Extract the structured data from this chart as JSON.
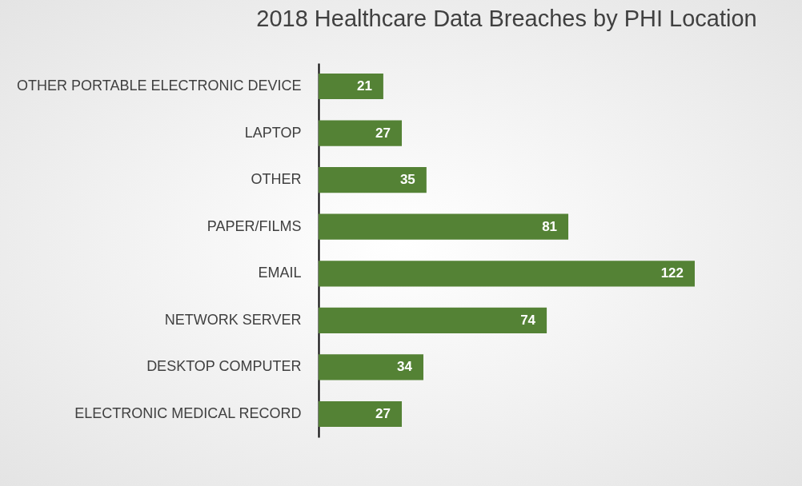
{
  "chart_data": {
    "type": "bar",
    "orientation": "horizontal",
    "title": "2018 Healthcare Data Breaches by PHI Location",
    "categories": [
      "OTHER PORTABLE ELECTRONIC DEVICE",
      "LAPTOP",
      "OTHER",
      "PAPER/FILMS",
      "EMAIL",
      "NETWORK SERVER",
      "DESKTOP COMPUTER",
      "ELECTRONIC MEDICAL RECORD"
    ],
    "values": [
      21,
      27,
      35,
      81,
      122,
      74,
      34,
      27
    ],
    "color": "#548235",
    "data_labels": true
  }
}
